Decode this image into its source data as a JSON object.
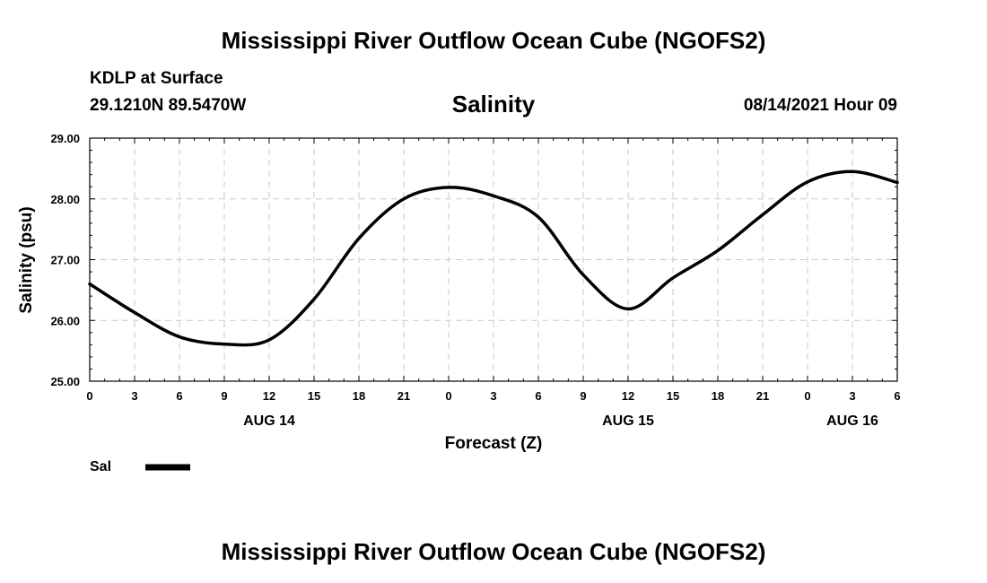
{
  "header": {
    "title": "Mississippi River Outflow Ocean Cube (NGOFS2)",
    "station": "KDLP at Surface",
    "coordinates": "29.1210N  89.5470W",
    "variable": "Salinity",
    "timestamp": "08/14/2021 Hour 09"
  },
  "footer": {
    "title": "Mississippi River Outflow Ocean Cube (NGOFS2)"
  },
  "chart_data": {
    "type": "line",
    "title": "Salinity",
    "xlabel": "Forecast (Z)",
    "ylabel": "Salinity (psu)",
    "ylim": [
      25.0,
      29.0
    ],
    "xlim": [
      0,
      54
    ],
    "grid": true,
    "y_ticks": [
      "25.00",
      "26.00",
      "27.00",
      "28.00",
      "29.00"
    ],
    "y_tick_values": [
      25,
      26,
      27,
      28,
      29
    ],
    "x_tick_hours": [
      0,
      3,
      6,
      9,
      12,
      15,
      18,
      21,
      24,
      27,
      30,
      33,
      36,
      39,
      42,
      45,
      48,
      51,
      54
    ],
    "x_tick_labels": [
      "0",
      "3",
      "6",
      "9",
      "12",
      "15",
      "18",
      "21",
      "0",
      "3",
      "6",
      "9",
      "12",
      "15",
      "18",
      "21",
      "0",
      "3",
      "6"
    ],
    "date_labels": [
      {
        "label": "AUG 14",
        "hour": 12
      },
      {
        "label": "AUG 15",
        "hour": 36
      },
      {
        "label": "AUG 16",
        "hour": 51
      }
    ],
    "legend": {
      "label": "Sal",
      "position": "bottom-left",
      "color": "#000000"
    },
    "series": [
      {
        "name": "Sal",
        "color": "#000000",
        "x": [
          0,
          3,
          6,
          9,
          12,
          15,
          18,
          21,
          24,
          27,
          30,
          33,
          36,
          39,
          42,
          45,
          48,
          51,
          54
        ],
        "values": [
          26.6,
          26.13,
          25.73,
          25.61,
          25.68,
          26.35,
          27.35,
          28.0,
          28.19,
          28.05,
          27.7,
          26.75,
          26.19,
          26.7,
          27.15,
          27.74,
          28.28,
          28.45,
          28.27
        ]
      }
    ]
  }
}
